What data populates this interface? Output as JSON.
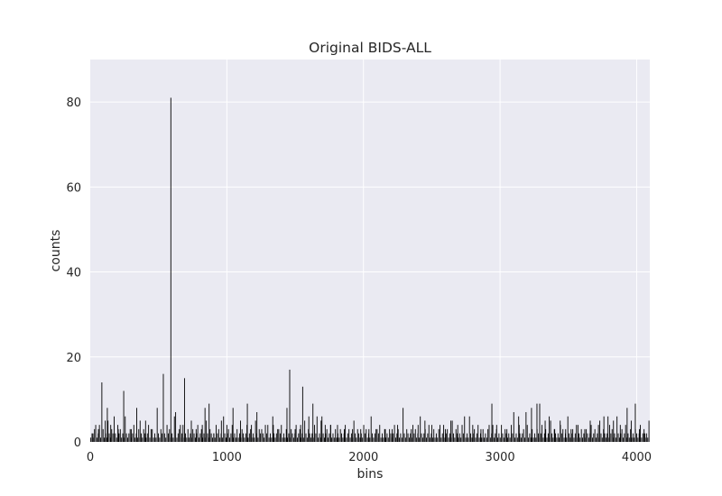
{
  "chart_data": {
    "type": "bar",
    "title": "Original BIDS-ALL",
    "xlabel": "bins",
    "ylabel": "counts",
    "xlim": [
      0,
      4096
    ],
    "ylim": [
      0,
      90
    ],
    "xticks": [
      0,
      1000,
      2000,
      3000,
      4000
    ],
    "yticks": [
      0,
      20,
      40,
      60,
      80
    ],
    "grid": true,
    "background_color": "#eaeaf2",
    "grid_color": "#ffffff",
    "bar_color": "#000000",
    "baseline_pattern": [
      1,
      2,
      1,
      3,
      2,
      1,
      2,
      4,
      1,
      2,
      3,
      1,
      2,
      1,
      5,
      2,
      1,
      3,
      2,
      1,
      2,
      1,
      4,
      2,
      3,
      1,
      2,
      1,
      6,
      2,
      1,
      2,
      3,
      1,
      2,
      4,
      1,
      2,
      1,
      3
    ],
    "peaks": [
      {
        "x": 20,
        "y": 2
      },
      {
        "x": 40,
        "y": 4
      },
      {
        "x": 60,
        "y": 3
      },
      {
        "x": 85,
        "y": 14
      },
      {
        "x": 110,
        "y": 5
      },
      {
        "x": 125,
        "y": 8
      },
      {
        "x": 150,
        "y": 4
      },
      {
        "x": 175,
        "y": 6
      },
      {
        "x": 205,
        "y": 3
      },
      {
        "x": 245,
        "y": 12
      },
      {
        "x": 300,
        "y": 3
      },
      {
        "x": 340,
        "y": 8
      },
      {
        "x": 365,
        "y": 5
      },
      {
        "x": 405,
        "y": 5
      },
      {
        "x": 445,
        "y": 3
      },
      {
        "x": 490,
        "y": 8
      },
      {
        "x": 535,
        "y": 16
      },
      {
        "x": 590,
        "y": 81
      },
      {
        "x": 625,
        "y": 7
      },
      {
        "x": 660,
        "y": 4
      },
      {
        "x": 690,
        "y": 15
      },
      {
        "x": 740,
        "y": 5
      },
      {
        "x": 775,
        "y": 3
      },
      {
        "x": 820,
        "y": 4
      },
      {
        "x": 840,
        "y": 8
      },
      {
        "x": 870,
        "y": 9
      },
      {
        "x": 905,
        "y": 2
      },
      {
        "x": 960,
        "y": 5
      },
      {
        "x": 1000,
        "y": 4
      },
      {
        "x": 1045,
        "y": 8
      },
      {
        "x": 1100,
        "y": 5
      },
      {
        "x": 1150,
        "y": 9
      },
      {
        "x": 1180,
        "y": 4
      },
      {
        "x": 1220,
        "y": 7
      },
      {
        "x": 1255,
        "y": 3
      },
      {
        "x": 1300,
        "y": 4
      },
      {
        "x": 1340,
        "y": 4
      },
      {
        "x": 1380,
        "y": 3
      },
      {
        "x": 1440,
        "y": 8
      },
      {
        "x": 1460,
        "y": 17
      },
      {
        "x": 1500,
        "y": 3
      },
      {
        "x": 1540,
        "y": 4
      },
      {
        "x": 1555,
        "y": 13
      },
      {
        "x": 1600,
        "y": 6
      },
      {
        "x": 1630,
        "y": 9
      },
      {
        "x": 1660,
        "y": 6
      },
      {
        "x": 1690,
        "y": 5
      },
      {
        "x": 1720,
        "y": 4
      },
      {
        "x": 1760,
        "y": 4
      },
      {
        "x": 1810,
        "y": 4
      },
      {
        "x": 1860,
        "y": 3
      },
      {
        "x": 1920,
        "y": 3
      },
      {
        "x": 1980,
        "y": 3
      },
      {
        "x": 2040,
        "y": 3
      },
      {
        "x": 2100,
        "y": 3
      },
      {
        "x": 2160,
        "y": 3
      },
      {
        "x": 2210,
        "y": 3
      },
      {
        "x": 2250,
        "y": 4
      },
      {
        "x": 2290,
        "y": 8
      },
      {
        "x": 2350,
        "y": 3
      },
      {
        "x": 2400,
        "y": 4
      },
      {
        "x": 2450,
        "y": 5
      },
      {
        "x": 2500,
        "y": 4
      },
      {
        "x": 2560,
        "y": 4
      },
      {
        "x": 2600,
        "y": 3
      },
      {
        "x": 2640,
        "y": 5
      },
      {
        "x": 2690,
        "y": 4
      },
      {
        "x": 2740,
        "y": 6
      },
      {
        "x": 2800,
        "y": 4
      },
      {
        "x": 2860,
        "y": 3
      },
      {
        "x": 2920,
        "y": 4
      },
      {
        "x": 2940,
        "y": 9
      },
      {
        "x": 2975,
        "y": 4
      },
      {
        "x": 3010,
        "y": 4
      },
      {
        "x": 3050,
        "y": 3
      },
      {
        "x": 3100,
        "y": 7
      },
      {
        "x": 3140,
        "y": 4
      },
      {
        "x": 3190,
        "y": 7
      },
      {
        "x": 3230,
        "y": 8
      },
      {
        "x": 3270,
        "y": 9
      },
      {
        "x": 3290,
        "y": 9
      },
      {
        "x": 3330,
        "y": 5
      },
      {
        "x": 3360,
        "y": 6
      },
      {
        "x": 3400,
        "y": 3
      },
      {
        "x": 3440,
        "y": 5
      },
      {
        "x": 3480,
        "y": 3
      },
      {
        "x": 3520,
        "y": 3
      },
      {
        "x": 3570,
        "y": 4
      },
      {
        "x": 3620,
        "y": 3
      },
      {
        "x": 3660,
        "y": 5
      },
      {
        "x": 3720,
        "y": 4
      },
      {
        "x": 3760,
        "y": 6
      },
      {
        "x": 3790,
        "y": 6
      },
      {
        "x": 3830,
        "y": 5
      },
      {
        "x": 3880,
        "y": 4
      },
      {
        "x": 3930,
        "y": 8
      },
      {
        "x": 3960,
        "y": 5
      },
      {
        "x": 3990,
        "y": 9
      },
      {
        "x": 4020,
        "y": 3
      },
      {
        "x": 4060,
        "y": 2
      }
    ]
  }
}
